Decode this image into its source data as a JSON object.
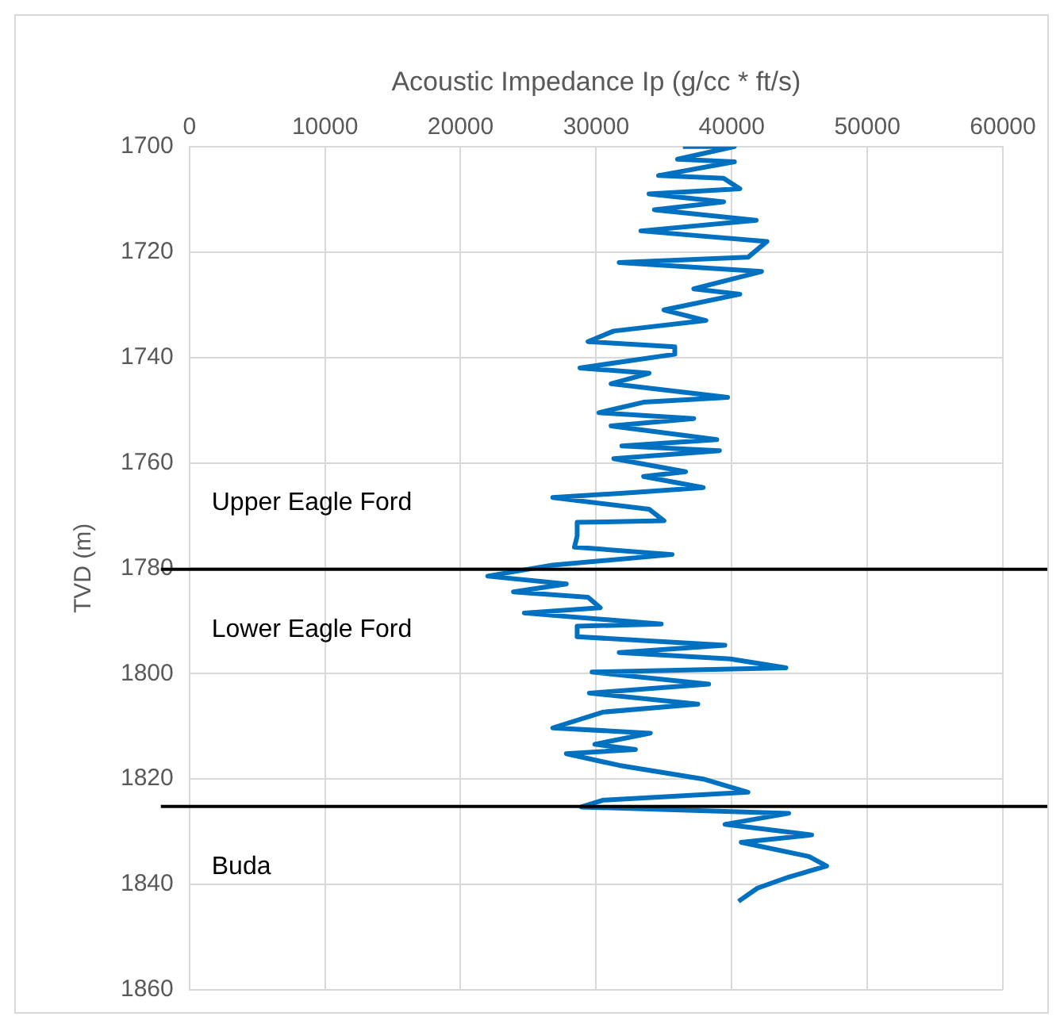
{
  "chart_data": {
    "type": "line",
    "xlabel": "Acoustic Impedance Ip (g/cc * ft/s)",
    "ylabel": "TVD (m)",
    "xlim": [
      0,
      60000
    ],
    "xticks": [
      0,
      10000,
      20000,
      30000,
      40000,
      50000,
      60000
    ],
    "ylim": [
      1860,
      1700
    ],
    "yticks": [
      1700,
      1720,
      1740,
      1760,
      1780,
      1800,
      1820,
      1840,
      1860
    ],
    "grid": true,
    "legend": false,
    "marker": "none",
    "line_style": "solid",
    "series": [
      {
        "color": "#0070c0",
        "x": [
          36400,
          40200,
          36000,
          40200,
          34600,
          39400,
          40600,
          33900,
          39400,
          34300,
          41800,
          33300,
          42600,
          41200,
          31700,
          42200,
          37200,
          40600,
          35000,
          38100,
          31300,
          29400,
          35800,
          35800,
          28800,
          33900,
          31100,
          39700,
          33500,
          30200,
          37200,
          31100,
          38900,
          31900,
          39100,
          31300,
          36600,
          33500,
          37900,
          32900,
          26800,
          33900,
          35000,
          28600,
          28600,
          28400,
          35600,
          26800,
          22000,
          27800,
          23900,
          29400,
          30300,
          24700,
          34800,
          28600,
          28600,
          39500,
          31700,
          39900,
          44000,
          29700,
          38300,
          29500,
          37500,
          30500,
          26800,
          34000,
          29900,
          32900,
          27800,
          31700,
          37900,
          41200,
          30500,
          28900,
          44200,
          39500,
          45900,
          40700,
          45700,
          47000,
          44200,
          41900,
          40500
        ],
        "values": [
          1700,
          1700,
          1702.4,
          1702.9,
          1705.5,
          1706,
          1708,
          1709,
          1710.5,
          1712,
          1714,
          1716,
          1718,
          1721,
          1722,
          1723.7,
          1727,
          1728,
          1731,
          1733,
          1735,
          1737,
          1738,
          1739.4,
          1742,
          1743,
          1745,
          1747.6,
          1748.5,
          1750.5,
          1751.6,
          1753,
          1755.6,
          1756.8,
          1757.7,
          1759.2,
          1761.7,
          1762.6,
          1764.7,
          1765.6,
          1766.6,
          1768.8,
          1771,
          1771.3,
          1773.9,
          1776,
          1777.4,
          1779.4,
          1781.5,
          1783,
          1784.5,
          1785.5,
          1787.5,
          1788.5,
          1790.6,
          1791,
          1793,
          1794.6,
          1796,
          1797.2,
          1798.9,
          1799.7,
          1802,
          1803.7,
          1805.8,
          1807.3,
          1810.3,
          1811.3,
          1813.4,
          1814.4,
          1815.2,
          1817.4,
          1820,
          1822.5,
          1824,
          1825.3,
          1826.5,
          1828.6,
          1830.6,
          1832,
          1834.7,
          1836.5,
          1838.6,
          1840.7,
          1843.2
        ]
      }
    ],
    "ref_lines": [
      {
        "axis": "y",
        "value": 1780.2,
        "color": "#000000"
      },
      {
        "axis": "y",
        "value": 1825.2,
        "color": "#000000"
      }
    ],
    "annotations": [
      "Upper Eagle Ford",
      "Lower Eagle Ford",
      "Buda"
    ]
  }
}
